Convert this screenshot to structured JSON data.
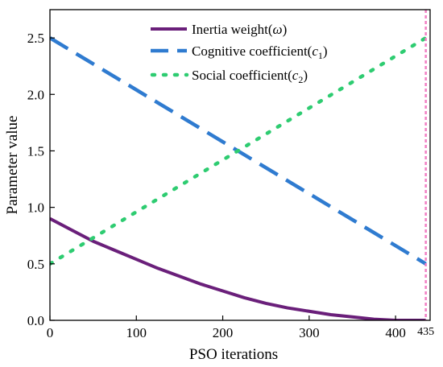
{
  "chart_data": {
    "type": "line",
    "xlabel": "PSO iterations",
    "ylabel": "Parameter value",
    "xlim": [
      0,
      440
    ],
    "ylim": [
      0.0,
      2.75
    ],
    "xticks": [
      0,
      100,
      200,
      300,
      400
    ],
    "xtick_labels": [
      "0",
      "100",
      "200",
      "300",
      "400"
    ],
    "yticks": [
      0.0,
      0.5,
      1.0,
      1.5,
      2.0,
      2.5
    ],
    "ytick_labels": [
      "0.0",
      "0.5",
      "1.0",
      "1.5",
      "2.0",
      "2.5"
    ],
    "grid": false,
    "legend_position": "top-center",
    "series": [
      {
        "name": "Inertia weight(ω)",
        "name_prefix": "Inertia weight(",
        "name_symbol": "ω",
        "name_suffix": ")",
        "style": "solid",
        "color": "#6a1f7a",
        "x": [
          0,
          25,
          50,
          75,
          100,
          125,
          150,
          175,
          200,
          225,
          250,
          275,
          300,
          325,
          350,
          375,
          400,
          425,
          435
        ],
        "y": [
          0.9,
          0.8,
          0.7,
          0.62,
          0.54,
          0.46,
          0.39,
          0.32,
          0.26,
          0.2,
          0.15,
          0.11,
          0.08,
          0.05,
          0.03,
          0.01,
          0.0,
          0.0,
          0.0
        ]
      },
      {
        "name": "Cognitive coefficient(c1)",
        "name_prefix": "Cognitive coefficient(",
        "name_symbol": "c",
        "name_sub": "1",
        "name_suffix": ")",
        "style": "dashed",
        "color": "#2f7bd0",
        "x": [
          0,
          435
        ],
        "y": [
          2.5,
          0.5
        ]
      },
      {
        "name": "Social coefficient(c2)",
        "name_prefix": "Social coefficient(",
        "name_symbol": "c",
        "name_sub": "2",
        "name_suffix": ")",
        "style": "dotted",
        "color": "#2ecc71",
        "x": [
          0,
          435
        ],
        "y": [
          0.5,
          2.5
        ]
      }
    ],
    "annotations": [
      {
        "type": "vline",
        "x": 435,
        "label": "435",
        "style": "dotted",
        "color": "#f27ec4"
      }
    ]
  }
}
